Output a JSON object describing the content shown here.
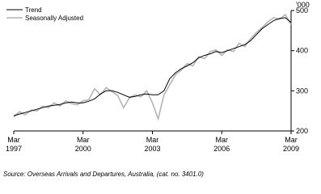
{
  "chart_data": {
    "type": "line",
    "y_unit": "'000",
    "categories": [
      "Mar 1997",
      null,
      null,
      null,
      null,
      null,
      null,
      null,
      null,
      null,
      null,
      null,
      "Mar 2000",
      null,
      null,
      null,
      null,
      null,
      null,
      null,
      null,
      null,
      null,
      null,
      "Mar 2003",
      null,
      null,
      null,
      null,
      null,
      null,
      null,
      null,
      null,
      null,
      null,
      "Mar 2006",
      null,
      null,
      null,
      null,
      null,
      null,
      null,
      null,
      null,
      null,
      null,
      "Mar 2009"
    ],
    "series": [
      {
        "name": "Trend",
        "color": "#000000",
        "values": [
          238,
          242,
          246,
          250,
          254,
          258,
          262,
          264,
          266,
          270,
          272,
          270,
          270,
          274,
          280,
          292,
          300,
          300,
          296,
          290,
          284,
          286,
          290,
          292,
          290,
          290,
          300,
          330,
          345,
          355,
          362,
          370,
          382,
          388,
          392,
          398,
          395,
          400,
          405,
          410,
          415,
          425,
          440,
          455,
          465,
          475,
          480,
          482,
          470
        ]
      },
      {
        "name": "Seasonally Adjusted",
        "color": "#b4b4b4",
        "values": [
          235,
          248,
          240,
          252,
          250,
          262,
          258,
          270,
          262,
          275,
          268,
          265,
          275,
          278,
          305,
          290,
          308,
          298,
          288,
          258,
          282,
          290,
          285,
          300,
          270,
          230,
          290,
          315,
          340,
          352,
          368,
          362,
          385,
          380,
          398,
          402,
          388,
          402,
          398,
          418,
          410,
          430,
          445,
          458,
          472,
          482,
          478,
          490,
          465
        ]
      }
    ],
    "ylim": [
      200,
      500
    ],
    "yticks": [
      200,
      300,
      400,
      500
    ],
    "legend": "top-left",
    "source": "Source: Overseas Arrivals and Departures, Australia, (cat. no. 3401.0)"
  }
}
